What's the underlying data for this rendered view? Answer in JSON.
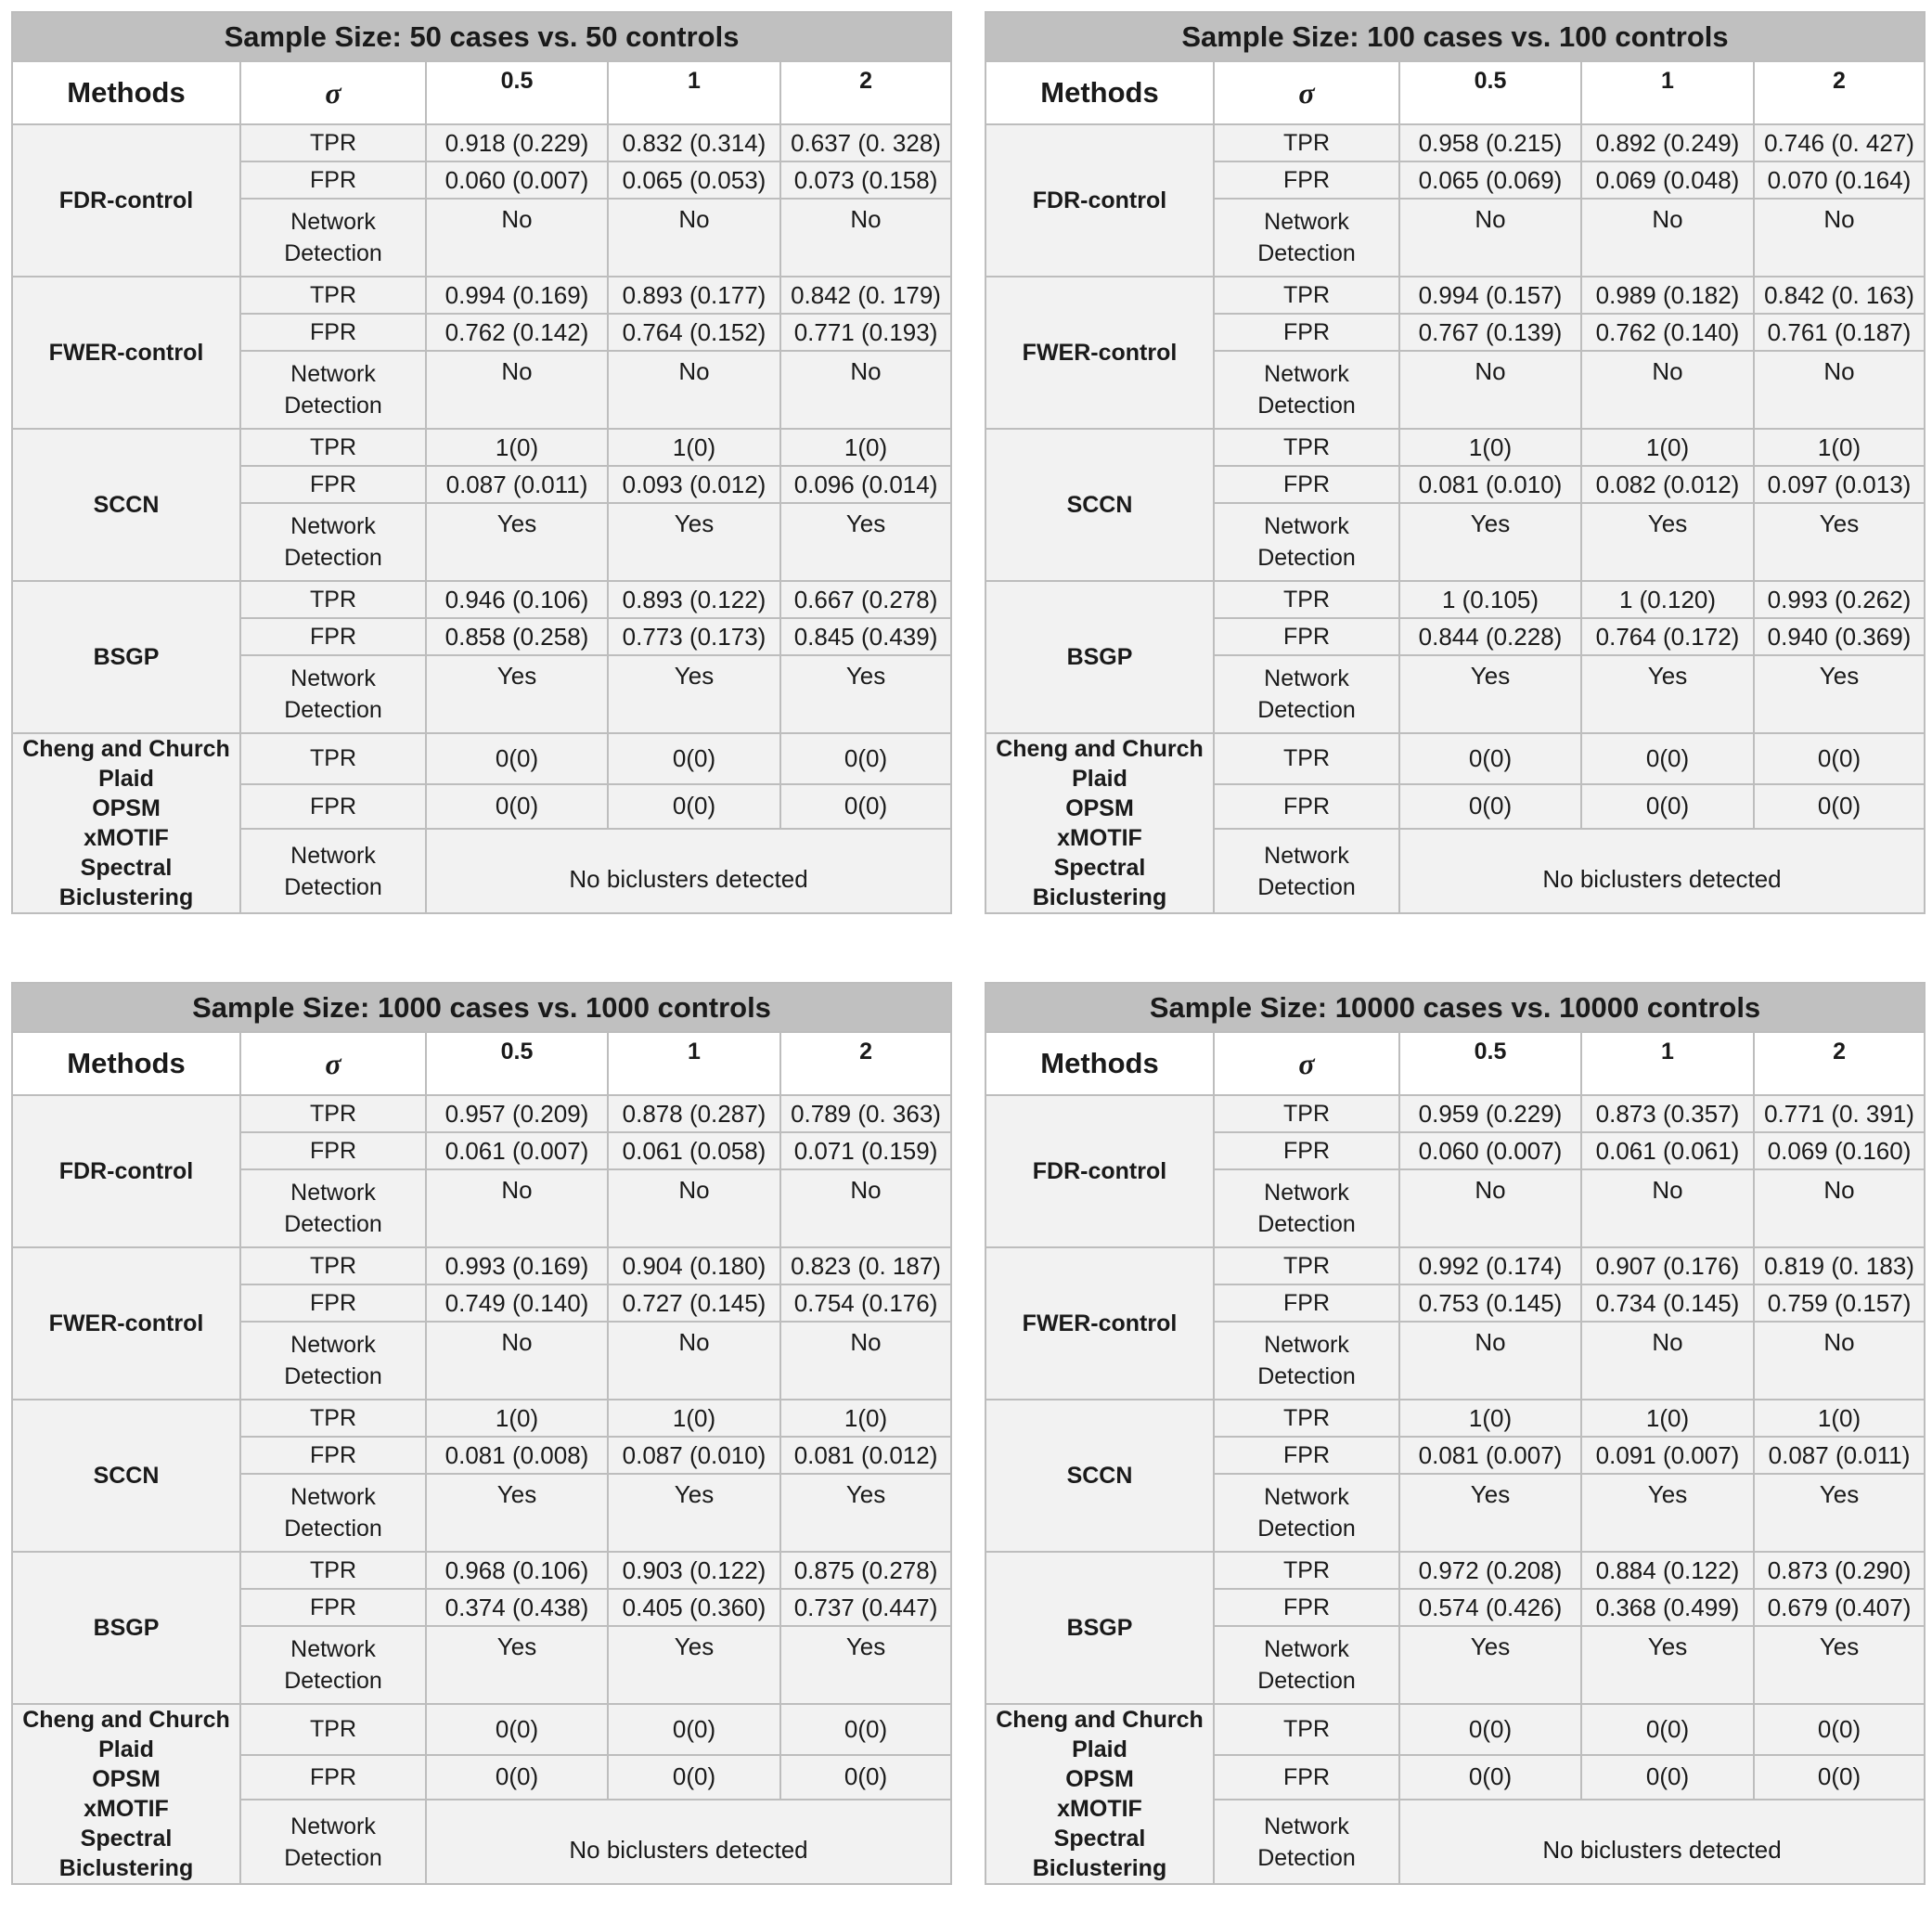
{
  "headers": {
    "methods": "Methods",
    "sigma": "σ",
    "sigma_values": [
      "0.5",
      "1",
      "2"
    ]
  },
  "metric_labels": {
    "tpr": "TPR",
    "fpr": "FPR",
    "network_detection_line1": "Network",
    "network_detection_line2": "Detection"
  },
  "other_methods": [
    "Cheng and Church",
    "Plaid",
    "OPSM",
    "xMOTIF",
    "Spectral Biclustering"
  ],
  "panels": [
    {
      "title": "Sample Size: 50 cases vs. 50 controls",
      "methods": [
        {
          "name": "FDR-control",
          "tpr": [
            "0.918 (0.229)",
            "0.832 (0.314)",
            "0.637 (0. 328)"
          ],
          "fpr": [
            "0.060 (0.007)",
            "0.065 (0.053)",
            "0.073 (0.158)"
          ],
          "nd": [
            "No",
            "No",
            "No"
          ]
        },
        {
          "name": "FWER-control",
          "tpr": [
            "0.994 (0.169)",
            "0.893 (0.177)",
            "0.842 (0. 179)"
          ],
          "fpr": [
            "0.762 (0.142)",
            "0.764 (0.152)",
            "0.771 (0.193)"
          ],
          "nd": [
            "No",
            "No",
            "No"
          ]
        },
        {
          "name": "SCCN",
          "tpr": [
            "1(0)",
            "1(0)",
            "1(0)"
          ],
          "fpr": [
            "0.087 (0.011)",
            "0.093 (0.012)",
            "0.096 (0.014)"
          ],
          "nd": [
            "Yes",
            "Yes",
            "Yes"
          ]
        },
        {
          "name": "BSGP",
          "tpr": [
            "0.946 (0.106)",
            "0.893 (0.122)",
            "0.667 (0.278)"
          ],
          "fpr": [
            "0.858 (0.258)",
            "0.773 (0.173)",
            "0.845 (0.439)"
          ],
          "nd": [
            "Yes",
            "Yes",
            "Yes"
          ]
        }
      ],
      "others": {
        "tpr": [
          "0(0)",
          "0(0)",
          "0(0)"
        ],
        "fpr": [
          "0(0)",
          "0(0)",
          "0(0)"
        ],
        "nd": "No biclusters detected"
      }
    },
    {
      "title": "Sample Size: 100 cases vs. 100 controls",
      "methods": [
        {
          "name": "FDR-control",
          "tpr": [
            "0.958 (0.215)",
            "0.892 (0.249)",
            "0.746 (0. 427)"
          ],
          "fpr": [
            "0.065 (0.069)",
            "0.069 (0.048)",
            "0.070 (0.164)"
          ],
          "nd": [
            "No",
            "No",
            "No"
          ]
        },
        {
          "name": "FWER-control",
          "tpr": [
            "0.994 (0.157)",
            "0.989 (0.182)",
            "0.842 (0. 163)"
          ],
          "fpr": [
            "0.767 (0.139)",
            "0.762 (0.140)",
            "0.761 (0.187)"
          ],
          "nd": [
            "No",
            "No",
            "No"
          ]
        },
        {
          "name": "SCCN",
          "tpr": [
            "1(0)",
            "1(0)",
            "1(0)"
          ],
          "fpr": [
            "0.081 (0.010)",
            "0.082 (0.012)",
            "0.097 (0.013)"
          ],
          "nd": [
            "Yes",
            "Yes",
            "Yes"
          ]
        },
        {
          "name": "BSGP",
          "tpr": [
            "1 (0.105)",
            "1 (0.120)",
            "0.993 (0.262)"
          ],
          "fpr": [
            "0.844 (0.228)",
            "0.764 (0.172)",
            "0.940 (0.369)"
          ],
          "nd": [
            "Yes",
            "Yes",
            "Yes"
          ]
        }
      ],
      "others": {
        "tpr": [
          "0(0)",
          "0(0)",
          "0(0)"
        ],
        "fpr": [
          "0(0)",
          "0(0)",
          "0(0)"
        ],
        "nd": "No biclusters detected"
      }
    },
    {
      "title": "Sample Size: 1000 cases vs. 1000 controls",
      "methods": [
        {
          "name": "FDR-control",
          "tpr": [
            "0.957 (0.209)",
            "0.878 (0.287)",
            "0.789 (0. 363)"
          ],
          "fpr": [
            "0.061 (0.007)",
            "0.061 (0.058)",
            "0.071 (0.159)"
          ],
          "nd": [
            "No",
            "No",
            "No"
          ]
        },
        {
          "name": "FWER-control",
          "tpr": [
            "0.993 (0.169)",
            "0.904 (0.180)",
            "0.823 (0. 187)"
          ],
          "fpr": [
            "0.749 (0.140)",
            "0.727 (0.145)",
            "0.754 (0.176)"
          ],
          "nd": [
            "No",
            "No",
            "No"
          ]
        },
        {
          "name": "SCCN",
          "tpr": [
            "1(0)",
            "1(0)",
            "1(0)"
          ],
          "fpr": [
            "0.081 (0.008)",
            "0.087 (0.010)",
            "0.081 (0.012)"
          ],
          "nd": [
            "Yes",
            "Yes",
            "Yes"
          ]
        },
        {
          "name": "BSGP",
          "tpr": [
            "0.968 (0.106)",
            "0.903 (0.122)",
            "0.875 (0.278)"
          ],
          "fpr": [
            "0.374 (0.438)",
            "0.405 (0.360)",
            "0.737 (0.447)"
          ],
          "nd": [
            "Yes",
            "Yes",
            "Yes"
          ]
        }
      ],
      "others": {
        "tpr": [
          "0(0)",
          "0(0)",
          "0(0)"
        ],
        "fpr": [
          "0(0)",
          "0(0)",
          "0(0)"
        ],
        "nd": "No biclusters detected"
      }
    },
    {
      "title": "Sample Size: 10000 cases vs. 10000 controls",
      "methods": [
        {
          "name": "FDR-control",
          "tpr": [
            "0.959 (0.229)",
            "0.873 (0.357)",
            "0.771 (0. 391)"
          ],
          "fpr": [
            "0.060 (0.007)",
            "0.061 (0.061)",
            "0.069 (0.160)"
          ],
          "nd": [
            "No",
            "No",
            "No"
          ]
        },
        {
          "name": "FWER-control",
          "tpr": [
            "0.992 (0.174)",
            "0.907 (0.176)",
            "0.819 (0. 183)"
          ],
          "fpr": [
            "0.753 (0.145)",
            "0.734 (0.145)",
            "0.759 (0.157)"
          ],
          "nd": [
            "No",
            "No",
            "No"
          ]
        },
        {
          "name": "SCCN",
          "tpr": [
            "1(0)",
            "1(0)",
            "1(0)"
          ],
          "fpr": [
            "0.081 (0.007)",
            "0.091 (0.007)",
            "0.087 (0.011)"
          ],
          "nd": [
            "Yes",
            "Yes",
            "Yes"
          ]
        },
        {
          "name": "BSGP",
          "tpr": [
            "0.972 (0.208)",
            "0.884 (0.122)",
            "0.873 (0.290)"
          ],
          "fpr": [
            "0.574 (0.426)",
            "0.368 (0.499)",
            "0.679 (0.407)"
          ],
          "nd": [
            "Yes",
            "Yes",
            "Yes"
          ]
        }
      ],
      "others": {
        "tpr": [
          "0(0)",
          "0(0)",
          "0(0)"
        ],
        "fpr": [
          "0(0)",
          "0(0)",
          "0(0)"
        ],
        "nd": "No biclusters detected"
      }
    }
  ]
}
